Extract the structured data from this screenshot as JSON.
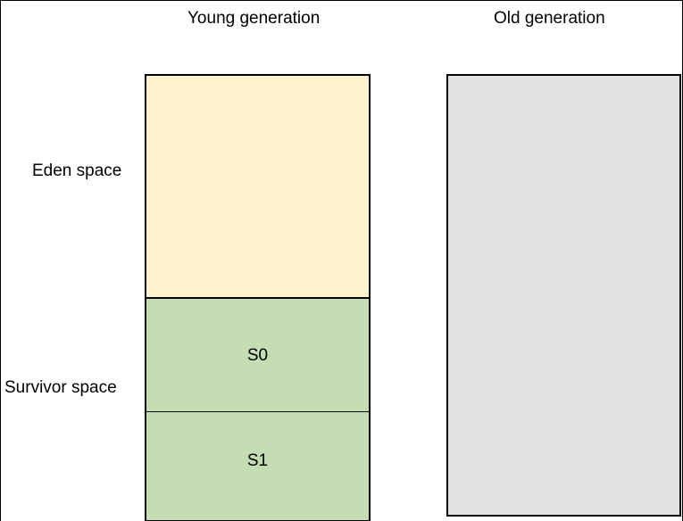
{
  "headers": {
    "young": "Young generation",
    "old": "Old generation"
  },
  "side_labels": {
    "eden": "Eden space",
    "survivor": "Survivor space"
  },
  "regions": {
    "eden": {
      "label": "",
      "color": "#FFF2CC"
    },
    "s0": {
      "label": "S0",
      "color": "#C4DDB3"
    },
    "s1": {
      "label": "S1",
      "color": "#C4DDB3"
    },
    "old": {
      "label": "",
      "color": "#E2E2E2"
    }
  }
}
